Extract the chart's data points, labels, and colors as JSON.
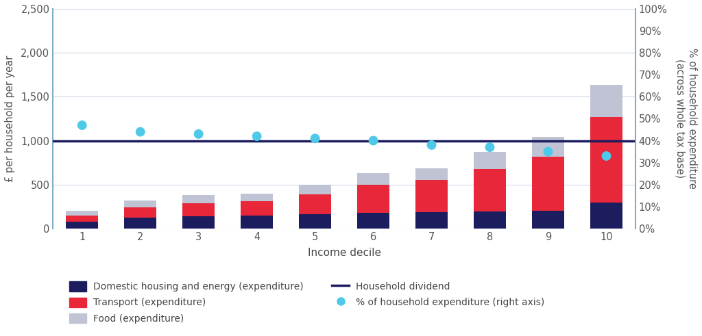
{
  "deciles": [
    1,
    2,
    3,
    4,
    5,
    6,
    7,
    8,
    9,
    10
  ],
  "domestic_housing": [
    75,
    120,
    140,
    145,
    165,
    175,
    185,
    195,
    205,
    295
  ],
  "transport": [
    75,
    120,
    150,
    165,
    220,
    320,
    370,
    480,
    610,
    975
  ],
  "food": [
    50,
    80,
    90,
    90,
    110,
    135,
    130,
    195,
    230,
    365
  ],
  "household_dividend": 1000,
  "pct_expenditure": [
    47,
    44,
    43,
    42,
    41,
    40,
    38,
    37,
    35,
    33
  ],
  "ylim_left": [
    0,
    2500
  ],
  "ylim_right": [
    0,
    100
  ],
  "yticks_left": [
    0,
    500,
    1000,
    1500,
    2000,
    2500
  ],
  "ytick_labels_left": [
    "0",
    "500",
    "1,000",
    "1,500",
    "2,000",
    "2,500"
  ],
  "ytick_labels_right": [
    "0%",
    "10%",
    "20%",
    "30%",
    "40%",
    "50%",
    "60%",
    "70%",
    "80%",
    "90%",
    "100%"
  ],
  "color_domestic": "#1b1d5e",
  "color_transport": "#e8273a",
  "color_food": "#bfc3d4",
  "color_dividend": "#1b1d5e",
  "color_dot": "#4ec9e8",
  "color_bg": "#ffffff",
  "xlabel": "Income decile",
  "ylabel_left": "£ per household per year",
  "ylabel_right": "% of household expenditure\n(across whole tax base)",
  "legend_domestic": "Domestic housing and energy (expenditure)",
  "legend_transport": "Transport (expenditure)",
  "legend_food": "Food (expenditure)",
  "legend_dividend": "Household dividend",
  "legend_dot": "% of household expenditure (right axis)",
  "bar_width": 0.55,
  "grid_color": "#d0d8e8",
  "axis_color": "#7daec8"
}
